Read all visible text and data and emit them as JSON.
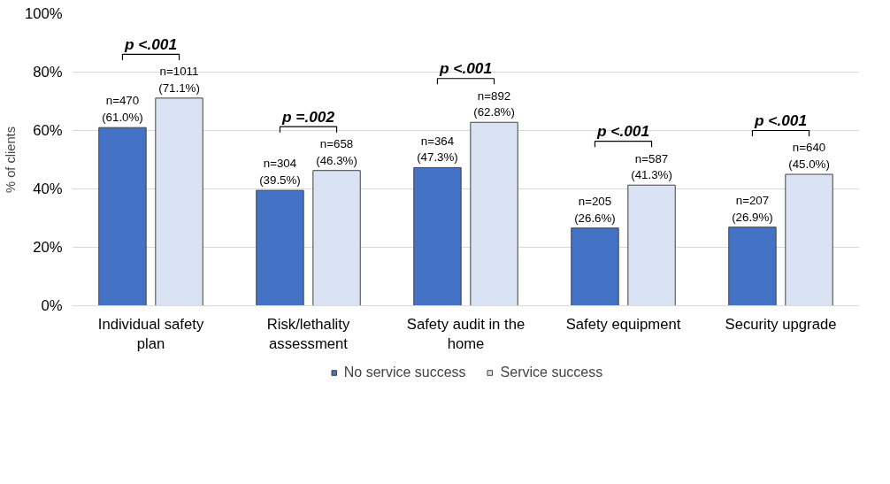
{
  "chart_data": {
    "type": "bar",
    "ylabel": "% of clients",
    "categories": [
      "Individual safety plan",
      "Risk/lethality assessment",
      "Safety audit in the home",
      "Safety equipment",
      "Security upgrade"
    ],
    "series": [
      {
        "name": "No service success",
        "color": "#4472c4",
        "values": [
          61.0,
          39.5,
          47.3,
          26.6,
          26.9
        ],
        "value_labels": [
          "n=470\n(61.0%)",
          "n=304\n(39.5%)",
          "n=364\n(47.3%)",
          "n=205\n(26.6%)",
          "n=207\n(26.9%)"
        ]
      },
      {
        "name": "Service success",
        "color": "#dae3f3",
        "values": [
          71.1,
          46.3,
          62.8,
          41.3,
          45.0
        ],
        "value_labels": [
          "n=1011\n(71.1%)",
          "n=658\n(46.3%)",
          "n=892\n(62.8%)",
          "n=587\n(41.3%)",
          "n=640\n(45.0%)"
        ]
      }
    ],
    "ylim": [
      0,
      100
    ],
    "yticks": [
      {
        "value": 0,
        "label": "0%"
      },
      {
        "value": 20,
        "label": "20%"
      },
      {
        "value": 40,
        "label": "40%"
      },
      {
        "value": 60,
        "label": "60%"
      },
      {
        "value": 80,
        "label": "80%"
      },
      {
        "value": 100,
        "label": "100%"
      }
    ],
    "grid": "y",
    "legend": "bottom",
    "annotations": [
      "p <.001",
      "p =.002",
      "p <.001",
      "p <.001",
      "p <.001"
    ]
  }
}
